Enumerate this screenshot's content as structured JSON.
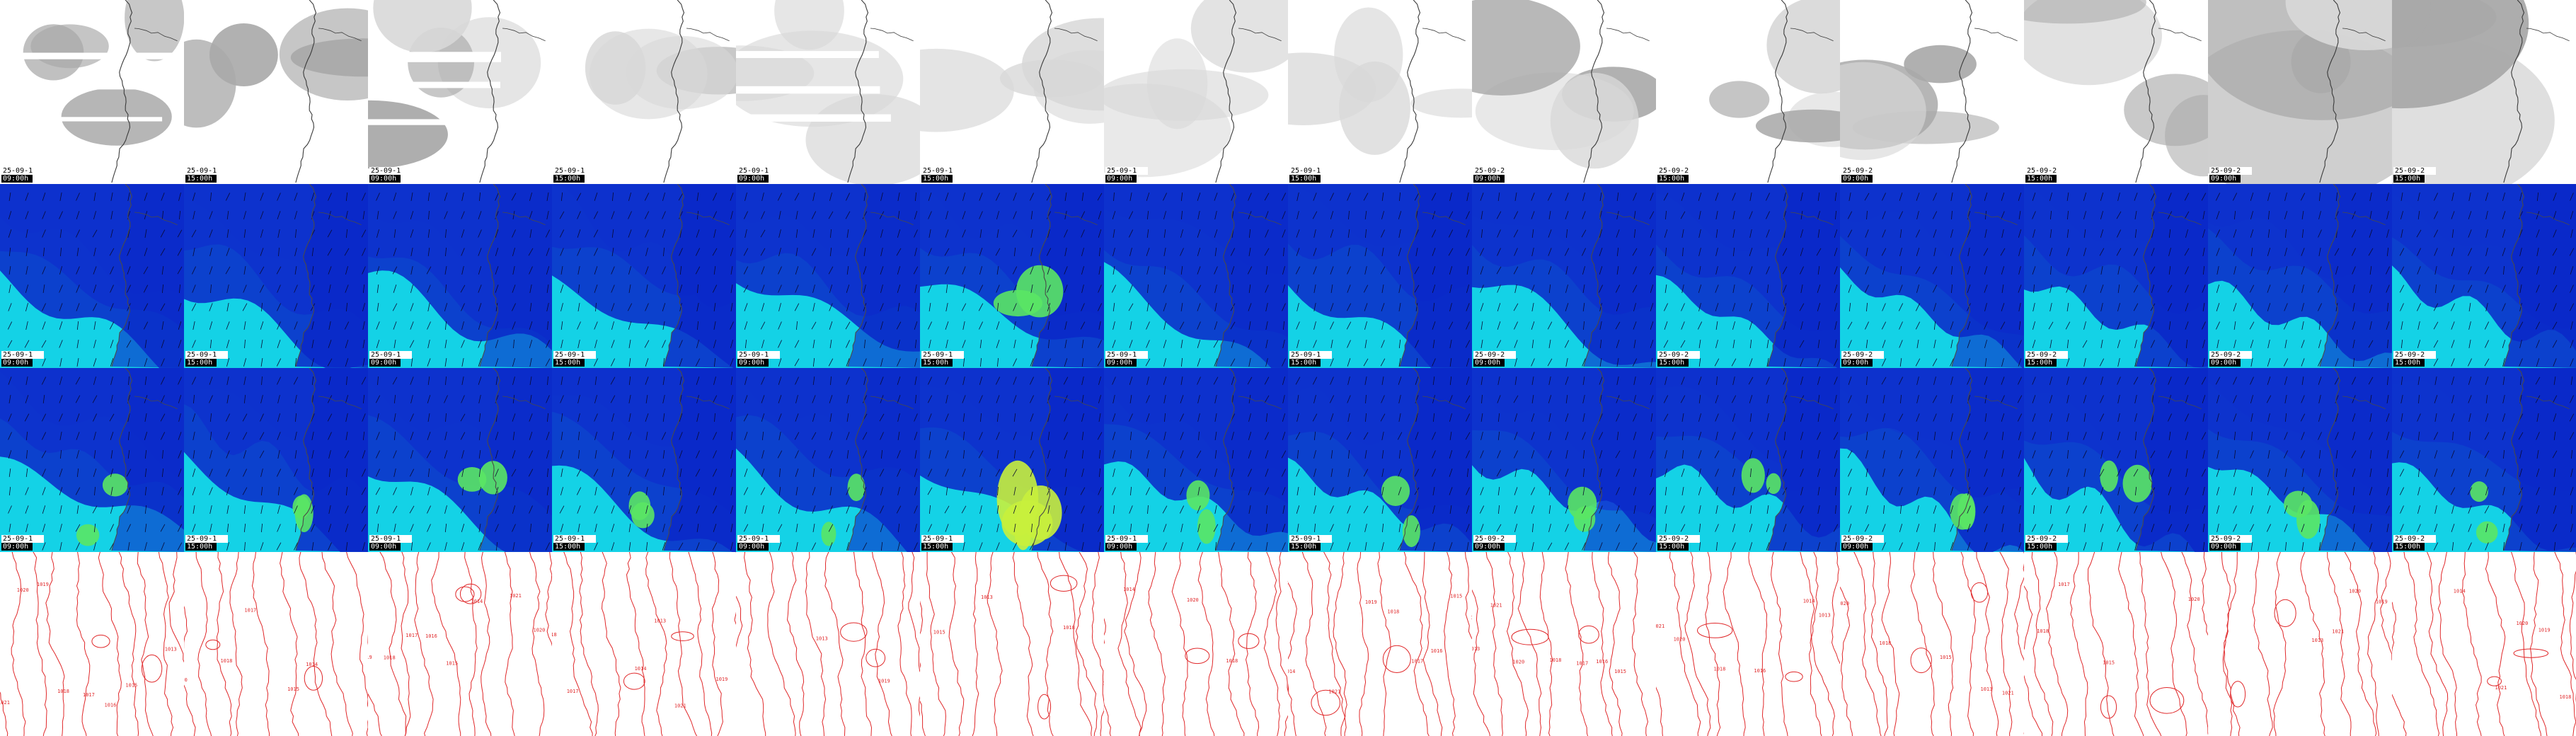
{
  "colors": {
    "cloud_clear": "#ffffff",
    "cloud_light": "#d8d8d8",
    "cloud_dense": "#a9a9a9",
    "wind_calm": "#0a28c8",
    "wind_low": "#1e64e6",
    "wind_mid": "#28a0f0",
    "wind_high": "#14d2e6",
    "wind_peak": "#5ae664",
    "wind_extreme": "#c8f03c",
    "isobar": "#e0282a",
    "coastline": "#202020"
  },
  "rows": [
    {
      "product": "cloud-cover",
      "icon": "cloud-map-icon"
    },
    {
      "product": "wind-10m",
      "icon": "wind-map-icon"
    },
    {
      "product": "wind-gust",
      "icon": "wind-gust-map-icon"
    },
    {
      "product": "sea-level-pressure",
      "icon": "isobar-map-icon"
    }
  ],
  "panels": [
    {
      "date": "25-09-1",
      "time": "09:00h"
    },
    {
      "date": "25-09-1",
      "time": "15:00h"
    },
    {
      "date": "25-09-1",
      "time": "09:00h"
    },
    {
      "date": "25-09-1",
      "time": "15:00h"
    },
    {
      "date": "25-09-1",
      "time": "09:00h"
    },
    {
      "date": "25-09-1",
      "time": "15:00h"
    },
    {
      "date": "25-09-1",
      "time": "09:00h"
    },
    {
      "date": "25-09-1",
      "time": "15:00h"
    },
    {
      "date": "25-09-2",
      "time": "09:00h"
    },
    {
      "date": "25-09-2",
      "time": "15:00h"
    },
    {
      "date": "25-09-2",
      "time": "09:00h"
    },
    {
      "date": "25-09-2",
      "time": "15:00h"
    },
    {
      "date": "25-09-2",
      "time": "09:00h"
    },
    {
      "date": "25-09-2",
      "time": "15:00h"
    }
  ],
  "isobar_labels": [
    "1021",
    "1020",
    "1019",
    "1018",
    "1017",
    "1016",
    "1015",
    "1014",
    "1013"
  ]
}
